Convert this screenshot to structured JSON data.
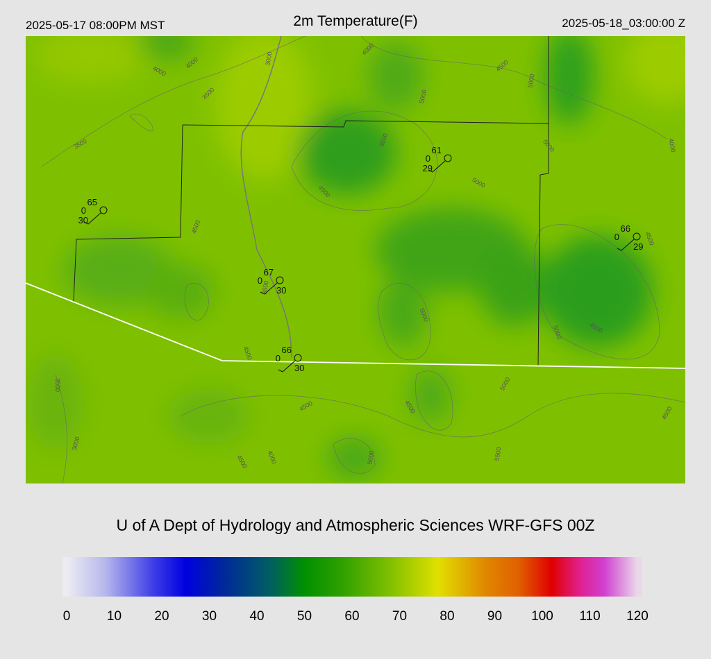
{
  "header": {
    "left": "2025-05-17 08:00PM MST",
    "title": "2m Temperature(F)",
    "right": "2025-05-18_03:00:00 Z"
  },
  "credit": "U of A Dept of Hydrology and Atmospheric Sciences WRF-GFS 00Z",
  "contour_labels": [
    "4000",
    "4000",
    "3500",
    "3000",
    "4000",
    "4500",
    "5000",
    "5000",
    "3500",
    "3500",
    "5000",
    "4000",
    "4500",
    "5000",
    "4500",
    "4500",
    "3500",
    "5000",
    "5000",
    "4500",
    "4500",
    "3500",
    "4500",
    "4500",
    "5000",
    "3000",
    "4500",
    "4000",
    "5000",
    "4500",
    "5500"
  ],
  "stations": [
    {
      "temp": "65",
      "zero": "0",
      "dew": "30"
    },
    {
      "temp": "61",
      "zero": "0",
      "dew": "29"
    },
    {
      "temp": "66",
      "zero": "0",
      "dew": "29"
    },
    {
      "temp": "67",
      "zero": "0",
      "dew": "30"
    },
    {
      "temp": "66",
      "zero": "0",
      "dew": "30"
    }
  ],
  "colorbar": {
    "range": [
      0,
      120
    ],
    "ticks": [
      0,
      10,
      20,
      30,
      40,
      50,
      60,
      70,
      80,
      90,
      100,
      110,
      120
    ],
    "stops": [
      {
        "value": 0,
        "color": "#ececf2"
      },
      {
        "value": 8,
        "color": "#b8b8ec"
      },
      {
        "value": 18,
        "color": "#4040e8"
      },
      {
        "value": 25,
        "color": "#0000e0"
      },
      {
        "value": 33,
        "color": "#00289a"
      },
      {
        "value": 43,
        "color": "#006060"
      },
      {
        "value": 50,
        "color": "#009000"
      },
      {
        "value": 58,
        "color": "#30a000"
      },
      {
        "value": 68,
        "color": "#80c000"
      },
      {
        "value": 78,
        "color": "#e0e000"
      },
      {
        "value": 88,
        "color": "#e08800"
      },
      {
        "value": 95,
        "color": "#e06000"
      },
      {
        "value": 102,
        "color": "#e00000"
      },
      {
        "value": 108,
        "color": "#e02090"
      },
      {
        "value": 113,
        "color": "#d040d0"
      },
      {
        "value": 120,
        "color": "#ead8ea"
      }
    ]
  }
}
